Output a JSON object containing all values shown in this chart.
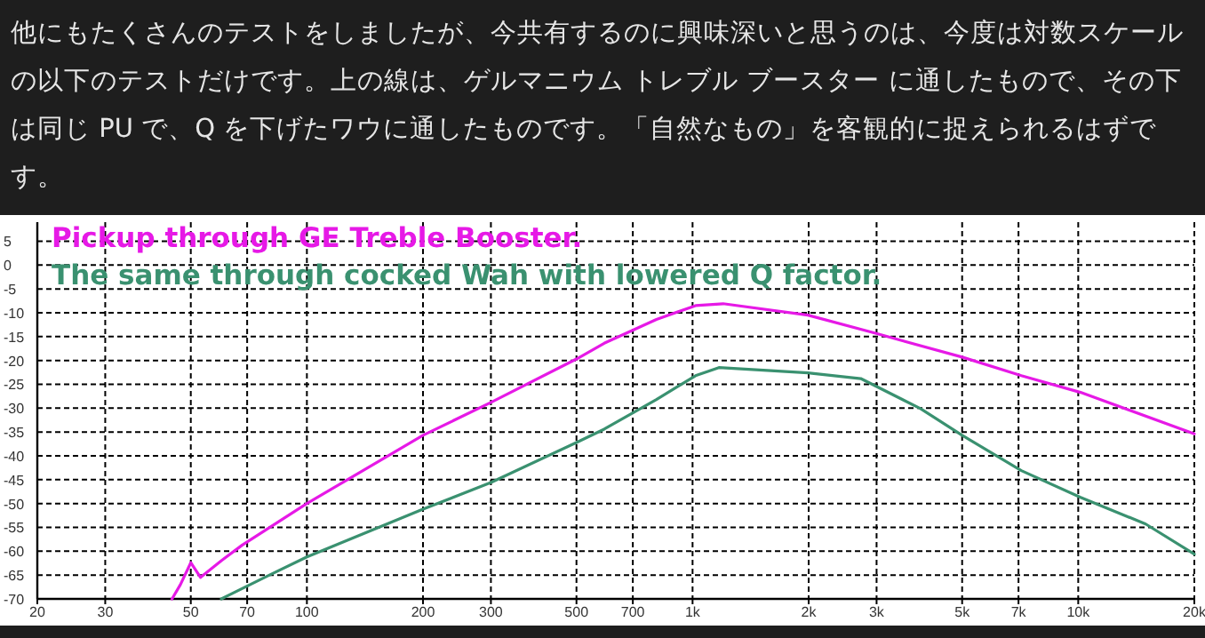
{
  "chart_data": {
    "type": "line",
    "title": "他にもたくさんのテストをしましたが、今共有するのに興味深いと思うのは、今度は対数スケールの以下のテストだけです。上の線は、ゲルマニウム トレブル ブースター に通したもので、その下は同じ PU で、Q を下げたワウに通したものです。「自然なもの」を客観的に捉えられるはずです。",
    "log": "x",
    "grid": true,
    "legend": "top left",
    "xlim": [
      20,
      20000
    ],
    "ylim": [
      -70,
      9
    ],
    "xticks": [
      20,
      30,
      50,
      70,
      100,
      200,
      300,
      500,
      700,
      {
        "value": 1000,
        "label": "1k"
      },
      {
        "value": 2000,
        "label": "2k"
      },
      {
        "value": 3000,
        "label": "3k"
      },
      {
        "value": 5000,
        "label": "5k"
      },
      {
        "value": 7000,
        "label": "7k"
      },
      {
        "value": 10000,
        "label": "10k"
      },
      {
        "value": 20000,
        "label": "20k"
      }
    ],
    "yticks": [
      5,
      0,
      -5,
      -10,
      -15,
      -20,
      -25,
      -30,
      -35,
      -40,
      -45,
      -50,
      -55,
      -60,
      -65,
      -70
    ],
    "series": [
      {
        "name": "Pickup through GE Treble Booster.",
        "color": "#e619e6",
        "x": [
          44.7,
          47,
          50,
          53,
          60,
          68,
          100,
          200,
          300,
          500,
          590,
          806,
          1018,
          1200,
          1990,
          2980,
          5000,
          7120,
          10140,
          20000
        ],
        "values": [
          -70,
          -67,
          -62.4,
          -65.5,
          -62,
          -58.7,
          -50,
          -35.7,
          -28.8,
          -19.7,
          -16.4,
          -11.4,
          -8.5,
          -8.1,
          -10.5,
          -14.3,
          -19.3,
          -23.2,
          -26.7,
          -35.4
        ]
      },
      {
        "name": "The same through cocked Wah with lowered Q factor.",
        "color": "#3a9170",
        "x": [
          60,
          80,
          100,
          200,
          300,
          500,
          590,
          806,
          1018,
          1170,
          1990,
          2730,
          3900,
          5000,
          7120,
          10140,
          14960,
          20000
        ],
        "values": [
          -70,
          -65,
          -61.2,
          -51.2,
          -45.6,
          -37.2,
          -34.4,
          -28.2,
          -23.2,
          -21.5,
          -22.6,
          -23.8,
          -30.1,
          -35.7,
          -43.1,
          -48.7,
          -54.3,
          -60.6
        ]
      }
    ]
  }
}
